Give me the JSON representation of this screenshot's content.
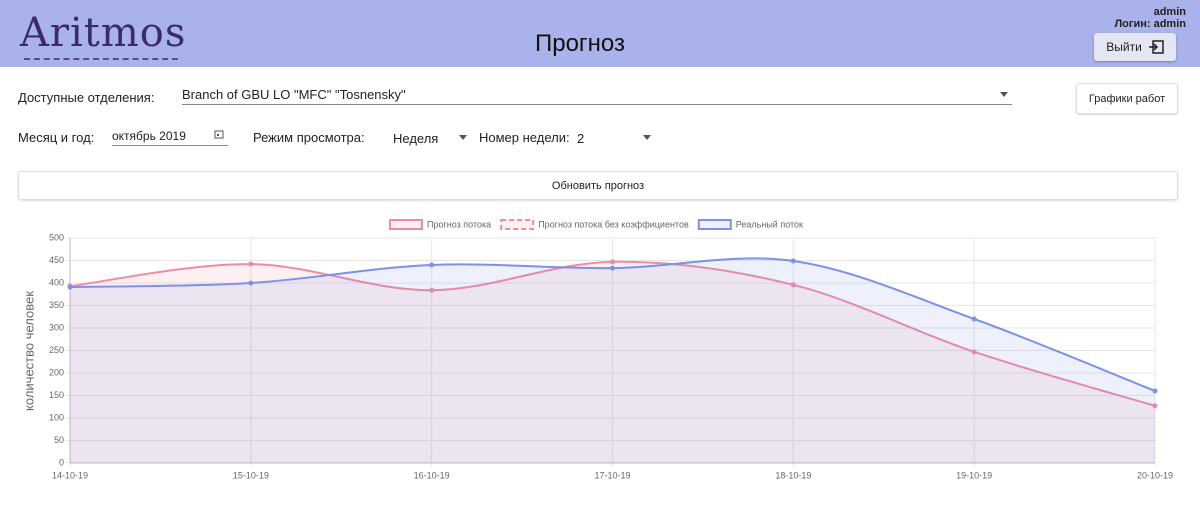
{
  "header": {
    "logo": "Aritmos",
    "title": "Прогноз",
    "user": "admin",
    "login": "Логин: admin",
    "logout": "Выйти"
  },
  "controls": {
    "branch_label": "Доступные отделения:",
    "branch_value": "Branch of GBU LO \"MFC\" \"Tosnensky\"",
    "schedules_button": "Графики работ",
    "month_label": "Месяц и год:",
    "month_value": "октябрь 2019",
    "mode_label": "Режим просмотра:",
    "mode_value": "Неделя",
    "week_label": "Номер недели:",
    "week_value": "2",
    "refresh_button": "Обновить прогноз"
  },
  "chart_data": {
    "type": "line",
    "ylabel": "количество человек",
    "categories": [
      "14-10-19",
      "15-10-19",
      "16-10-19",
      "17-10-19",
      "18-10-19",
      "19-10-19",
      "20-10-19"
    ],
    "series": [
      {
        "name": "Прогноз потока",
        "color": "#f08ca0",
        "values": [
          393,
          442,
          384,
          447,
          396,
          247,
          127
        ]
      },
      {
        "name": "Прогноз потока без коэффициентов",
        "color": "#f08ca0",
        "dashed": true,
        "values": [
          null,
          null,
          null,
          null,
          null,
          null,
          null
        ]
      },
      {
        "name": "Реальный поток",
        "color": "#7d91e6",
        "values": [
          391,
          400,
          440,
          433,
          449,
          320,
          160
        ]
      }
    ],
    "ylim": [
      0,
      500
    ],
    "yticks": [
      0,
      50,
      100,
      150,
      200,
      250,
      300,
      350,
      400,
      450,
      500
    ],
    "grid": true,
    "legend": "top"
  }
}
